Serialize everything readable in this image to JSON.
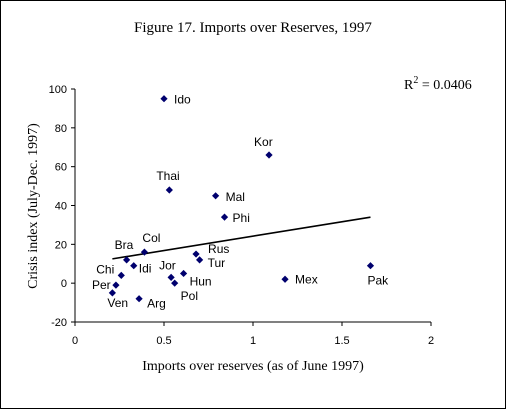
{
  "chart_data": {
    "type": "scatter",
    "title": "Figure 17. Imports over Reserves, 1997",
    "xlabel": "Imports over reserves  (as of June 1997)",
    "ylabel": "Crisis index (July-Dec. 1997)",
    "xlim": [
      0,
      2
    ],
    "ylim": [
      -20,
      100
    ],
    "xticks": [
      "0",
      "0.5",
      "1",
      "1.5",
      "2"
    ],
    "yticks": [
      "-20",
      "0",
      "20",
      "40",
      "60",
      "80",
      "100"
    ],
    "r2_label": "R",
    "r2_sup": "2",
    "r2_value": " = 0.0406",
    "points": [
      {
        "label": "Ido",
        "x": 0.5,
        "y": 95
      },
      {
        "label": "Kor",
        "x": 1.09,
        "y": 66
      },
      {
        "label": "Thai",
        "x": 0.53,
        "y": 48
      },
      {
        "label": "Mal",
        "x": 0.79,
        "y": 45
      },
      {
        "label": "Phi",
        "x": 0.84,
        "y": 34
      },
      {
        "label": "Col",
        "x": 0.39,
        "y": 16
      },
      {
        "label": "Bra",
        "x": 0.29,
        "y": 12
      },
      {
        "label": "Chi",
        "x": 0.26,
        "y": 4
      },
      {
        "label": "Idi",
        "x": 0.33,
        "y": 9
      },
      {
        "label": "Per",
        "x": 0.23,
        "y": -1
      },
      {
        "label": "Ven",
        "x": 0.21,
        "y": -5
      },
      {
        "label": "Arg",
        "x": 0.36,
        "y": -8
      },
      {
        "label": "Jor",
        "x": 0.54,
        "y": 3
      },
      {
        "label": "Pol",
        "x": 0.56,
        "y": 0
      },
      {
        "label": "Hun",
        "x": 0.61,
        "y": 5
      },
      {
        "label": "Tur",
        "x": 0.7,
        "y": 12
      },
      {
        "label": "Rus",
        "x": 0.68,
        "y": 15
      },
      {
        "label": "Mex",
        "x": 1.18,
        "y": 2
      },
      {
        "label": "Pak",
        "x": 1.66,
        "y": 9
      }
    ],
    "trendline": {
      "x": [
        0.21,
        1.66
      ],
      "y": [
        12.5,
        34
      ]
    },
    "grid": false,
    "marker_color": "#00006e",
    "line_color": "#000000"
  }
}
